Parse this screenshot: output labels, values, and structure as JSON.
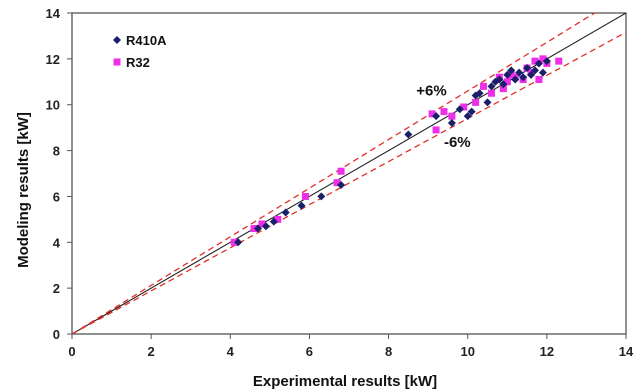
{
  "chart_data": {
    "type": "scatter",
    "title": "",
    "xlabel": "Experimental results [kW]",
    "ylabel": "Modeling results [kW]",
    "xlim": [
      0,
      14
    ],
    "ylim": [
      0,
      14
    ],
    "x_ticks": [
      "0",
      "2",
      "4",
      "6",
      "8",
      "10",
      "12",
      "14"
    ],
    "y_ticks": [
      "0",
      "2",
      "4",
      "6",
      "8",
      "10",
      "12",
      "14"
    ],
    "grid": false,
    "legend_position": "top-left",
    "reference_lines": [
      {
        "kind": "identity",
        "slope": 1.0,
        "color": "#222222",
        "style": "solid"
      },
      {
        "kind": "upper",
        "slope": 1.06,
        "color": "#e0302a",
        "style": "dashed"
      },
      {
        "kind": "lower",
        "slope": 0.94,
        "color": "#e0302a",
        "style": "dashed"
      }
    ],
    "annotations": [
      {
        "text": "+6%",
        "x": 8.7,
        "y": 10.4
      },
      {
        "text": "-6%",
        "x": 9.4,
        "y": 8.15
      }
    ],
    "series": [
      {
        "name": "R410A",
        "marker": "diamond",
        "color": "#1a1f6b",
        "points": [
          [
            4.2,
            4.0
          ],
          [
            4.7,
            4.6
          ],
          [
            4.9,
            4.7
          ],
          [
            5.1,
            4.9
          ],
          [
            5.4,
            5.3
          ],
          [
            5.8,
            5.6
          ],
          [
            6.3,
            6.0
          ],
          [
            6.8,
            6.5
          ],
          [
            8.5,
            8.7
          ],
          [
            9.2,
            9.5
          ],
          [
            9.6,
            9.2
          ],
          [
            9.8,
            9.8
          ],
          [
            10.0,
            9.5
          ],
          [
            10.1,
            9.7
          ],
          [
            10.2,
            10.4
          ],
          [
            10.3,
            10.5
          ],
          [
            10.5,
            10.1
          ],
          [
            10.6,
            10.8
          ],
          [
            10.8,
            11.1
          ],
          [
            10.9,
            10.9
          ],
          [
            11.0,
            11.3
          ],
          [
            11.1,
            11.5
          ],
          [
            11.2,
            11.1
          ],
          [
            11.3,
            11.4
          ],
          [
            11.4,
            11.2
          ],
          [
            11.5,
            11.6
          ],
          [
            11.6,
            11.3
          ],
          [
            11.7,
            11.5
          ],
          [
            11.8,
            11.8
          ],
          [
            11.9,
            11.4
          ],
          [
            12.0,
            11.9
          ],
          [
            10.7,
            11.0
          ]
        ]
      },
      {
        "name": "R32",
        "marker": "square",
        "color": "#ee2ee8",
        "points": [
          [
            4.1,
            4.0
          ],
          [
            4.6,
            4.6
          ],
          [
            4.8,
            4.8
          ],
          [
            5.2,
            5.0
          ],
          [
            5.9,
            6.0
          ],
          [
            6.7,
            6.6
          ],
          [
            6.8,
            7.1
          ],
          [
            9.1,
            9.6
          ],
          [
            9.2,
            8.9
          ],
          [
            9.4,
            9.7
          ],
          [
            9.6,
            9.5
          ],
          [
            9.9,
            9.9
          ],
          [
            10.2,
            10.1
          ],
          [
            10.4,
            10.8
          ],
          [
            10.6,
            10.5
          ],
          [
            10.8,
            11.2
          ],
          [
            10.9,
            10.7
          ],
          [
            11.0,
            11.0
          ],
          [
            11.1,
            11.3
          ],
          [
            11.2,
            11.2
          ],
          [
            11.4,
            11.1
          ],
          [
            11.5,
            11.6
          ],
          [
            11.6,
            11.4
          ],
          [
            11.7,
            11.9
          ],
          [
            11.8,
            11.1
          ],
          [
            11.9,
            12.0
          ],
          [
            12.0,
            11.8
          ],
          [
            12.3,
            11.9
          ]
        ]
      }
    ]
  }
}
